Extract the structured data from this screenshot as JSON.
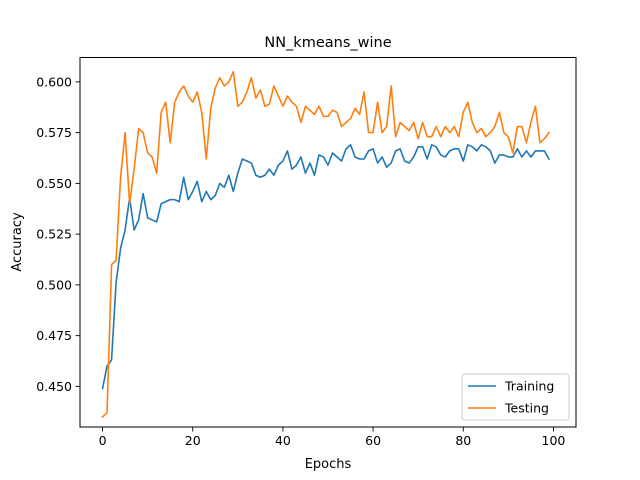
{
  "chart_data": {
    "type": "line",
    "title": "NN_kmeans_wine",
    "xlabel": "Epochs",
    "ylabel": "Accuracy",
    "xlim": [
      -5,
      105
    ],
    "ylim": [
      0.43,
      0.612
    ],
    "xticks": [
      0,
      20,
      40,
      60,
      80,
      100
    ],
    "yticks": [
      0.45,
      0.475,
      0.5,
      0.525,
      0.55,
      0.575,
      0.6
    ],
    "ytick_labels": [
      "0.450",
      "0.475",
      "0.500",
      "0.525",
      "0.550",
      "0.575",
      "0.600"
    ],
    "grid": false,
    "legend": "lower-right",
    "x": [
      0,
      1,
      2,
      3,
      4,
      5,
      6,
      7,
      8,
      9,
      10,
      11,
      12,
      13,
      14,
      15,
      16,
      17,
      18,
      19,
      20,
      21,
      22,
      23,
      24,
      25,
      26,
      27,
      28,
      29,
      30,
      31,
      32,
      33,
      34,
      35,
      36,
      37,
      38,
      39,
      40,
      41,
      42,
      43,
      44,
      45,
      46,
      47,
      48,
      49,
      50,
      51,
      52,
      53,
      54,
      55,
      56,
      57,
      58,
      59,
      60,
      61,
      62,
      63,
      64,
      65,
      66,
      67,
      68,
      69,
      70,
      71,
      72,
      73,
      74,
      75,
      76,
      77,
      78,
      79,
      80,
      81,
      82,
      83,
      84,
      85,
      86,
      87,
      88,
      89,
      90,
      91,
      92,
      93,
      94,
      95,
      96,
      97,
      98,
      99
    ],
    "series": [
      {
        "name": "Training",
        "color": "#1f77b4",
        "values": [
          0.449,
          0.46,
          0.463,
          0.501,
          0.518,
          0.527,
          0.543,
          0.527,
          0.532,
          0.545,
          0.533,
          0.532,
          0.531,
          0.54,
          0.541,
          0.542,
          0.542,
          0.541,
          0.553,
          0.542,
          0.546,
          0.551,
          0.541,
          0.546,
          0.542,
          0.544,
          0.55,
          0.548,
          0.554,
          0.546,
          0.555,
          0.562,
          0.561,
          0.56,
          0.554,
          0.553,
          0.554,
          0.557,
          0.554,
          0.559,
          0.561,
          0.566,
          0.557,
          0.559,
          0.563,
          0.555,
          0.56,
          0.554,
          0.564,
          0.563,
          0.559,
          0.565,
          0.563,
          0.561,
          0.567,
          0.569,
          0.563,
          0.562,
          0.562,
          0.566,
          0.567,
          0.56,
          0.563,
          0.558,
          0.56,
          0.566,
          0.567,
          0.561,
          0.56,
          0.563,
          0.568,
          0.568,
          0.562,
          0.569,
          0.568,
          0.564,
          0.563,
          0.566,
          0.567,
          0.567,
          0.561,
          0.569,
          0.568,
          0.566,
          0.569,
          0.568,
          0.566,
          0.56,
          0.564,
          0.564,
          0.563,
          0.563,
          0.567,
          0.563,
          0.566,
          0.563,
          0.566,
          0.566,
          0.566,
          0.562
        ]
      },
      {
        "name": "Testing",
        "color": "#ff7f0e",
        "values": [
          0.435,
          0.437,
          0.51,
          0.512,
          0.553,
          0.575,
          0.54,
          0.557,
          0.577,
          0.575,
          0.565,
          0.563,
          0.555,
          0.585,
          0.59,
          0.57,
          0.59,
          0.595,
          0.598,
          0.593,
          0.59,
          0.595,
          0.585,
          0.562,
          0.587,
          0.597,
          0.602,
          0.598,
          0.6,
          0.605,
          0.588,
          0.59,
          0.595,
          0.602,
          0.592,
          0.596,
          0.588,
          0.589,
          0.598,
          0.593,
          0.588,
          0.593,
          0.59,
          0.588,
          0.58,
          0.588,
          0.586,
          0.584,
          0.588,
          0.583,
          0.583,
          0.586,
          0.585,
          0.578,
          0.58,
          0.582,
          0.587,
          0.584,
          0.595,
          0.575,
          0.575,
          0.59,
          0.575,
          0.578,
          0.598,
          0.573,
          0.58,
          0.578,
          0.576,
          0.58,
          0.572,
          0.58,
          0.573,
          0.573,
          0.578,
          0.573,
          0.578,
          0.575,
          0.578,
          0.573,
          0.585,
          0.59,
          0.58,
          0.575,
          0.577,
          0.573,
          0.575,
          0.578,
          0.585,
          0.575,
          0.573,
          0.565,
          0.578,
          0.578,
          0.57,
          0.58,
          0.588,
          0.57,
          0.572,
          0.575
        ]
      }
    ]
  }
}
